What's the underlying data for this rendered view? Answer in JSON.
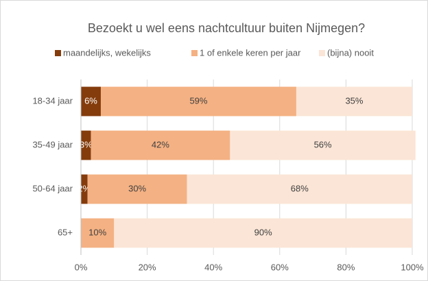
{
  "chart_data": {
    "type": "stacked-bar-horizontal",
    "title": "Bezoekt u wel eens nachtcultuur buiten Nijmegen?",
    "categories": [
      "18-34 jaar",
      "35-49 jaar",
      "50-64 jaar",
      "65+"
    ],
    "series": [
      {
        "name": "maandelijks, wekelijks",
        "color": "#843c0c",
        "label_color": "#ffffff",
        "values": [
          6,
          3,
          2,
          0
        ],
        "value_labels": [
          "6%",
          "3%",
          "2%",
          null
        ]
      },
      {
        "name": "1 of enkele keren per jaar",
        "color": "#f4b183",
        "label_color": "#404040",
        "values": [
          59,
          42,
          30,
          10
        ],
        "value_labels": [
          "59%",
          "42%",
          "30%",
          "10%"
        ]
      },
      {
        "name": "(bijna) nooit",
        "color": "#fbe5d6",
        "label_color": "#404040",
        "values": [
          35,
          56,
          68,
          90
        ],
        "value_labels": [
          "35%",
          "56%",
          "68%",
          "90%"
        ]
      }
    ],
    "xlim": [
      0,
      100
    ],
    "xticks": [
      {
        "value": 0,
        "label": "0%"
      },
      {
        "value": 20,
        "label": "20%"
      },
      {
        "value": 40,
        "label": "40%"
      },
      {
        "value": 60,
        "label": "60%"
      },
      {
        "value": 80,
        "label": "80%"
      },
      {
        "value": 100,
        "label": "100%"
      }
    ],
    "legend": "top"
  }
}
